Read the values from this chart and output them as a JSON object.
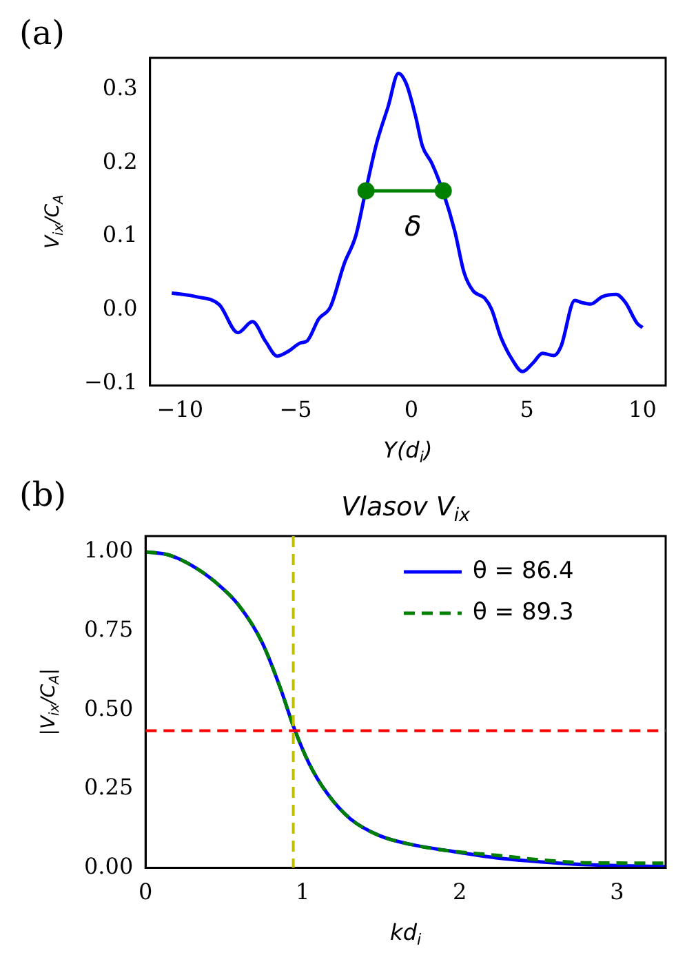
{
  "chart_data": [
    {
      "type": "line",
      "xlabel": "Y(d$_{i}$)",
      "ylabel": "V$_{ix}$/C$_{A}$",
      "annotations": [
        "(a)",
        "δ"
      ],
      "xlim": [
        -11.3,
        11.0
      ],
      "ylim": [
        -0.103,
        0.343
      ],
      "xticks": [
        {
          "value": -10,
          "label": "−10"
        },
        {
          "value": -5,
          "label": "−5"
        },
        0,
        5,
        10
      ],
      "yticks": [
        {
          "value": -0.1,
          "label": "−0.1"
        },
        {
          "value": 0,
          "label": "0.0"
        },
        0.1,
        0.2,
        0.3
      ],
      "grid": false,
      "legend": false,
      "series": [
        {
          "color": "#0000ff",
          "line_style": "solid",
          "marker": "none",
          "x": [
            -10.36,
            -9.3,
            -8.3,
            -7.5,
            -6.87,
            -6.3,
            -5.8,
            -5.3,
            -4.8,
            -4.5,
            -4.0,
            -3.5,
            -2.9,
            -2.4,
            -2.0,
            -1.5,
            -1.0,
            -0.56,
            -0.22,
            0.18,
            0.48,
            0.88,
            1.38,
            1.88,
            2.28,
            2.67,
            3.17,
            3.47,
            3.87,
            4.37,
            4.81,
            5.27,
            5.67,
            6.17,
            6.47,
            7.07,
            7.37,
            7.76,
            8.26,
            8.86,
            9.26,
            9.76,
            10.0
          ],
          "values": [
            0.023,
            0.018,
            0.007,
            -0.031,
            -0.016,
            -0.043,
            -0.063,
            -0.056,
            -0.045,
            -0.042,
            -0.012,
            0.004,
            0.063,
            0.101,
            0.158,
            0.227,
            0.277,
            0.322,
            0.308,
            0.264,
            0.223,
            0.2,
            0.16,
            0.107,
            0.051,
            0.026,
            0.016,
            0.001,
            -0.037,
            -0.068,
            -0.084,
            -0.072,
            -0.059,
            -0.062,
            -0.05,
            0.013,
            0.01,
            0.008,
            0.018,
            0.021,
            0.01,
            -0.018,
            -0.024
          ]
        },
        {
          "color": "#008000",
          "line_style": "solid",
          "marker": "circle",
          "x": [
            -1.96,
            1.38
          ],
          "values": [
            0.162,
            0.162
          ]
        }
      ]
    },
    {
      "type": "line",
      "title": "Vlasov V$_{ix}$",
      "xlabel": "kd$_{i}$",
      "ylabel": "|V$_{ix}$/C$_{A}$|",
      "annotations": [
        "(b)"
      ],
      "xlim": [
        0,
        3.31
      ],
      "ylim": [
        0,
        1.05
      ],
      "xticks": [
        0,
        1,
        2,
        3
      ],
      "yticks": [
        {
          "value": 0,
          "label": "0.00"
        },
        0.25,
        {
          "value": 0.5,
          "label": "0.50"
        },
        0.75,
        {
          "value": 1,
          "label": "1.00"
        }
      ],
      "grid": false,
      "legend": "top right",
      "ref_lines": [
        {
          "axis": "y",
          "value": 0.434,
          "color": "#ff0000",
          "line_style": "dashed"
        },
        {
          "axis": "x",
          "value": 0.94,
          "color": "#bfbf00",
          "line_style": "dashed"
        }
      ],
      "x": [
        0,
        0.148,
        0.297,
        0.445,
        0.593,
        0.742,
        0.86,
        0.94,
        1.04,
        1.157,
        1.306,
        1.484,
        1.69,
        1.93,
        2.23,
        2.52,
        2.82,
        3.31
      ],
      "series": [
        {
          "name": "θ = 86.4",
          "color": "#0000ff",
          "line_style": "solid",
          "marker": "none",
          "values": [
            1.0,
            0.99,
            0.956,
            0.904,
            0.831,
            0.713,
            0.566,
            0.449,
            0.331,
            0.235,
            0.154,
            0.103,
            0.074,
            0.054,
            0.032,
            0.019,
            0.01,
            0.004
          ]
        },
        {
          "name": "θ = 89.3",
          "color": "#008000",
          "line_style": "dashed",
          "marker": "none",
          "values": [
            1.0,
            0.99,
            0.956,
            0.904,
            0.831,
            0.713,
            0.566,
            0.449,
            0.331,
            0.235,
            0.154,
            0.103,
            0.074,
            0.054,
            0.04,
            0.025,
            0.016,
            0.015
          ]
        }
      ]
    }
  ]
}
